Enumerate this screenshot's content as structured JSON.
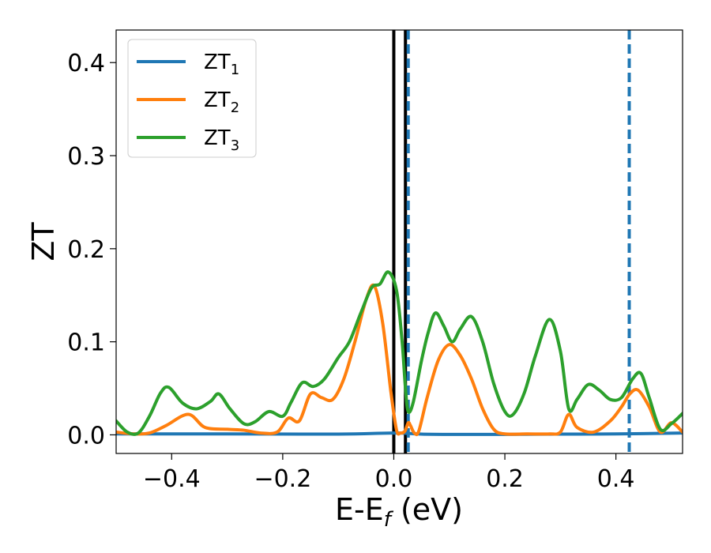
{
  "chart_data": {
    "type": "line",
    "xlabel": {
      "main": "E-E",
      "sub": "f",
      "unit": " (eV)"
    },
    "ylabel": "ZT",
    "xlim": [
      -0.5,
      0.52
    ],
    "ylim": [
      -0.02,
      0.435
    ],
    "xticks": [
      -0.4,
      -0.2,
      0.0,
      0.2,
      0.4
    ],
    "xtick_labels": [
      "−0.4",
      "−0.2",
      "0.0",
      "0.2",
      "0.4"
    ],
    "yticks": [
      0.0,
      0.1,
      0.2,
      0.3,
      0.4
    ],
    "ytick_labels": [
      "0.0",
      "0.1",
      "0.2",
      "0.3",
      "0.4"
    ],
    "legend_position": "top-left",
    "vlines": [
      {
        "x": 0.0,
        "color": "#000000",
        "style": "solid"
      },
      {
        "x": 0.021,
        "color": "#000000",
        "style": "solid"
      },
      {
        "x": 0.026,
        "color": "#1f77b4",
        "style": "dashed"
      },
      {
        "x": 0.424,
        "color": "#1f77b4",
        "style": "dashed"
      }
    ],
    "series": [
      {
        "name": "ZT",
        "name_sub": "1",
        "color": "#1f77b4",
        "x": [
          -0.5,
          -0.3,
          -0.1,
          0.0,
          0.05,
          0.1,
          0.2,
          0.3,
          0.4,
          0.52
        ],
        "y": [
          0.001,
          0.001,
          0.0008,
          0.002,
          0.0008,
          0.0005,
          0.0005,
          0.0008,
          0.001,
          0.002
        ]
      },
      {
        "name": "ZT",
        "name_sub": "2",
        "color": "#ff7f0e",
        "x": [
          -0.5,
          -0.47,
          -0.44,
          -0.41,
          -0.37,
          -0.34,
          -0.3,
          -0.27,
          -0.24,
          -0.21,
          -0.19,
          -0.17,
          -0.15,
          -0.13,
          -0.11,
          -0.09,
          -0.07,
          -0.05,
          -0.035,
          -0.02,
          -0.005,
          0.005,
          0.012,
          0.02,
          0.026,
          0.03,
          0.037,
          0.045,
          0.06,
          0.08,
          0.1,
          0.12,
          0.14,
          0.16,
          0.18,
          0.2,
          0.24,
          0.28,
          0.3,
          0.315,
          0.33,
          0.36,
          0.39,
          0.41,
          0.425,
          0.44,
          0.46,
          0.48,
          0.5,
          0.52
        ],
        "y": [
          0.003,
          0.001,
          0.002,
          0.01,
          0.022,
          0.008,
          0.006,
          0.005,
          0.002,
          0.003,
          0.018,
          0.015,
          0.044,
          0.04,
          0.038,
          0.06,
          0.1,
          0.145,
          0.16,
          0.12,
          0.045,
          0.005,
          0.002,
          0.004,
          0.013,
          0.01,
          0.002,
          0.004,
          0.04,
          0.08,
          0.097,
          0.085,
          0.06,
          0.028,
          0.006,
          0.001,
          0.001,
          0.001,
          0.003,
          0.022,
          0.008,
          0.003,
          0.015,
          0.03,
          0.044,
          0.048,
          0.03,
          0.003,
          0.013,
          0.003
        ]
      },
      {
        "name": "ZT",
        "name_sub": "3",
        "color": "#2ca02c",
        "x": [
          -0.5,
          -0.48,
          -0.46,
          -0.44,
          -0.42,
          -0.405,
          -0.38,
          -0.355,
          -0.33,
          -0.315,
          -0.295,
          -0.27,
          -0.25,
          -0.225,
          -0.2,
          -0.185,
          -0.165,
          -0.145,
          -0.125,
          -0.1,
          -0.08,
          -0.06,
          -0.04,
          -0.025,
          -0.01,
          0.005,
          0.015,
          0.021,
          0.026,
          0.035,
          0.05,
          0.062,
          0.075,
          0.09,
          0.105,
          0.12,
          0.14,
          0.16,
          0.18,
          0.2,
          0.215,
          0.235,
          0.255,
          0.28,
          0.3,
          0.315,
          0.33,
          0.35,
          0.37,
          0.39,
          0.41,
          0.43,
          0.445,
          0.46,
          0.48,
          0.5,
          0.52
        ],
        "y": [
          0.015,
          0.003,
          0.002,
          0.02,
          0.045,
          0.051,
          0.034,
          0.028,
          0.036,
          0.044,
          0.028,
          0.012,
          0.014,
          0.025,
          0.02,
          0.035,
          0.056,
          0.052,
          0.06,
          0.083,
          0.1,
          0.13,
          0.158,
          0.162,
          0.175,
          0.155,
          0.1,
          0.05,
          0.025,
          0.035,
          0.08,
          0.11,
          0.131,
          0.117,
          0.1,
          0.114,
          0.127,
          0.1,
          0.055,
          0.025,
          0.022,
          0.045,
          0.085,
          0.124,
          0.09,
          0.028,
          0.038,
          0.054,
          0.048,
          0.038,
          0.04,
          0.06,
          0.066,
          0.04,
          0.006,
          0.012,
          0.023
        ]
      }
    ]
  }
}
